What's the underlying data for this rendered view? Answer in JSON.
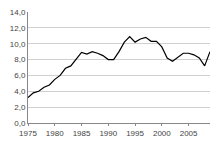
{
  "chart_data": {
    "type": "line",
    "color": "#000000",
    "grid": true,
    "x": [
      1975,
      1976,
      1977,
      1978,
      1979,
      1980,
      1981,
      1982,
      1983,
      1984,
      1985,
      1986,
      1987,
      1988,
      1989,
      1990,
      1991,
      1992,
      1993,
      1994,
      1995,
      1996,
      1997,
      1998,
      1999,
      2000,
      2001,
      2002,
      2003,
      2004,
      2005,
      2006,
      2007,
      2008,
      2009
    ],
    "values": [
      3.2,
      3.8,
      4.0,
      4.5,
      4.8,
      5.5,
      6.0,
      6.9,
      7.2,
      8.0,
      8.9,
      8.7,
      9.0,
      8.8,
      8.5,
      8.0,
      8.0,
      9.0,
      10.2,
      10.9,
      10.2,
      10.6,
      10.8,
      10.3,
      10.3,
      9.6,
      8.2,
      7.8,
      8.3,
      8.8,
      8.8,
      8.6,
      8.2,
      7.2,
      9.0
    ],
    "xlim": [
      1975,
      2009
    ],
    "xticks": [
      1975,
      1980,
      1985,
      1990,
      1995,
      2000,
      2005
    ],
    "ylim": [
      0,
      14
    ],
    "yticks": [
      {
        "value": 0,
        "label": "0,0"
      },
      {
        "value": 2,
        "label": "2,0"
      },
      {
        "value": 4,
        "label": "4,0"
      },
      {
        "value": 6,
        "label": "6,0"
      },
      {
        "value": 8,
        "label": "8,0"
      },
      {
        "value": 10,
        "label": "10,0"
      },
      {
        "value": 12,
        "label": "12,0"
      },
      {
        "value": 14,
        "label": "14,0"
      }
    ]
  }
}
